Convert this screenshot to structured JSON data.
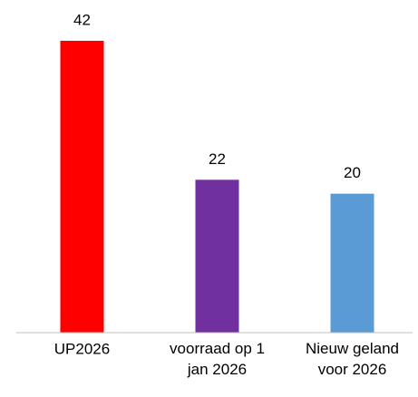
{
  "chart_data": {
    "type": "bar",
    "categories": [
      "UP2026",
      "voorraad op 1\njan 2026",
      "Nieuw geland\nvoor 2026"
    ],
    "values": [
      42,
      22,
      20
    ],
    "colors": [
      "#ff0000",
      "#7030a0",
      "#5b9bd5"
    ],
    "ylim": [
      0,
      45
    ]
  }
}
